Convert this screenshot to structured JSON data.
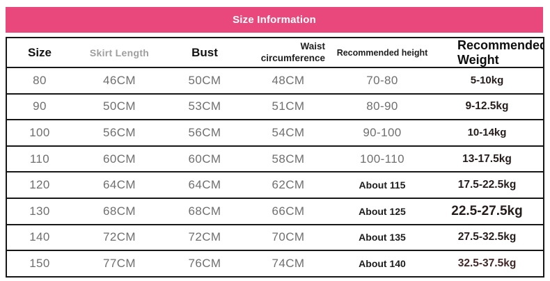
{
  "banner": {
    "title": "Size Information"
  },
  "colors": {
    "banner_bg": "#e8487c",
    "banner_text": "#ffffff",
    "border": "#161616",
    "muted_text": "#6f6f6f",
    "muted_header": "#9e9e9e",
    "weight_text": "#261c1c",
    "weight_text_last": "#402828"
  },
  "table": {
    "columns": [
      {
        "key": "size",
        "label": "Size",
        "lines": [
          "Size"
        ]
      },
      {
        "key": "skirt",
        "label": "Skirt Length",
        "lines": [
          "Skirt Length"
        ]
      },
      {
        "key": "bust",
        "label": "Bust",
        "lines": [
          "Bust"
        ]
      },
      {
        "key": "waist",
        "label": "Waist circumference",
        "lines": [
          "Waist",
          "circumference"
        ]
      },
      {
        "key": "height",
        "label": "Recommended height",
        "lines": [
          "Recommended height"
        ]
      },
      {
        "key": "weight",
        "label": "Recommended Weight",
        "lines": [
          "Recommended",
          "Weight"
        ]
      }
    ],
    "rows": [
      {
        "size": "80",
        "skirt": "46CM",
        "bust": "50CM",
        "waist": "48CM",
        "height": "70-80",
        "height_bold": false,
        "weight": "5-10kg"
      },
      {
        "size": "90",
        "skirt": "50CM",
        "bust": "53CM",
        "waist": "51CM",
        "height": "80-90",
        "height_bold": false,
        "weight": "9-12.5kg"
      },
      {
        "size": "100",
        "skirt": "56CM",
        "bust": "56CM",
        "waist": "54CM",
        "height": "90-100",
        "height_bold": false,
        "weight": "10-14kg"
      },
      {
        "size": "110",
        "skirt": "60CM",
        "bust": "60CM",
        "waist": "58CM",
        "height": "100-110",
        "height_bold": false,
        "weight": "13-17.5kg"
      },
      {
        "size": "120",
        "skirt": "64CM",
        "bust": "64CM",
        "waist": "62CM",
        "height": "About 115",
        "height_bold": true,
        "weight": "17.5-22.5kg"
      },
      {
        "size": "130",
        "skirt": "68CM",
        "bust": "68CM",
        "waist": "66CM",
        "height": "About 125",
        "height_bold": true,
        "weight": "22.5-27.5kg"
      },
      {
        "size": "140",
        "skirt": "72CM",
        "bust": "72CM",
        "waist": "70CM",
        "height": "About 135",
        "height_bold": true,
        "weight": "27.5-32.5kg"
      },
      {
        "size": "150",
        "skirt": "77CM",
        "bust": "76CM",
        "waist": "74CM",
        "height": "About 140",
        "height_bold": true,
        "weight": "32.5-37.5kg"
      }
    ]
  }
}
